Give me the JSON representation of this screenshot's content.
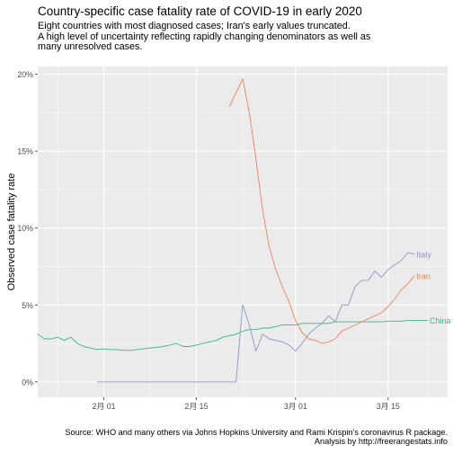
{
  "title": "Country-specific case fatality rate of COVID-19 in early 2020",
  "subtitle_lines": [
    "Eight countries with most diagnosed cases; Iran's early values truncated.",
    "A high level of uncertainty reflecting rapidly changing denominators as well as",
    "many unresolved cases."
  ],
  "caption_lines": [
    "Source: WHO and many others via Johns Hopkins University and Rami Krispin's coronavirus R package.",
    "Analysis by http://freerangestats.info"
  ],
  "colors": {
    "panel_bg": "#EBEBEB",
    "grid": "#FFFFFF",
    "China": "#3EB489",
    "Italy": "#8C97C6",
    "Iran": "#F0825F"
  },
  "chart_data": {
    "type": "line",
    "xlabel": "",
    "ylabel": "Observed case fatality rate",
    "x_domain": [
      "2020-01-22",
      "2020-03-24"
    ],
    "ylim": [
      -0.01,
      0.205
    ],
    "x_ticks": [
      {
        "date": "2020-02-01",
        "label": "2月 01"
      },
      {
        "date": "2020-02-15",
        "label": "2月 15"
      },
      {
        "date": "2020-03-01",
        "label": "3月 01"
      },
      {
        "date": "2020-03-15",
        "label": "3月 15"
      }
    ],
    "y_ticks": [
      {
        "value": 0.0,
        "label": "0%"
      },
      {
        "value": 0.05,
        "label": "5%"
      },
      {
        "value": 0.1,
        "label": "10%"
      },
      {
        "value": 0.15,
        "label": "15%"
      },
      {
        "value": 0.2,
        "label": "20%"
      }
    ],
    "grid": true,
    "series": [
      {
        "name": "China",
        "points": [
          [
            "2020-01-22",
            0.031
          ],
          [
            "2020-01-23",
            0.028
          ],
          [
            "2020-01-24",
            0.028
          ],
          [
            "2020-01-25",
            0.029
          ],
          [
            "2020-01-26",
            0.027
          ],
          [
            "2020-01-27",
            0.029
          ],
          [
            "2020-01-28",
            0.025
          ],
          [
            "2020-01-29",
            0.023
          ],
          [
            "2020-01-30",
            0.022
          ],
          [
            "2020-01-31",
            0.021
          ],
          [
            "2020-02-01",
            0.0215
          ],
          [
            "2020-02-02",
            0.021
          ],
          [
            "2020-02-03",
            0.021
          ],
          [
            "2020-02-04",
            0.0205
          ],
          [
            "2020-02-05",
            0.0205
          ],
          [
            "2020-02-06",
            0.021
          ],
          [
            "2020-02-07",
            0.0215
          ],
          [
            "2020-02-08",
            0.022
          ],
          [
            "2020-02-09",
            0.0225
          ],
          [
            "2020-02-10",
            0.023
          ],
          [
            "2020-02-11",
            0.024
          ],
          [
            "2020-02-12",
            0.025
          ],
          [
            "2020-02-13",
            0.023
          ],
          [
            "2020-02-14",
            0.023
          ],
          [
            "2020-02-15",
            0.024
          ],
          [
            "2020-02-16",
            0.025
          ],
          [
            "2020-02-17",
            0.026
          ],
          [
            "2020-02-18",
            0.027
          ],
          [
            "2020-02-19",
            0.029
          ],
          [
            "2020-02-20",
            0.03
          ],
          [
            "2020-02-21",
            0.031
          ],
          [
            "2020-02-22",
            0.033
          ],
          [
            "2020-02-23",
            0.034
          ],
          [
            "2020-02-24",
            0.034
          ],
          [
            "2020-02-25",
            0.035
          ],
          [
            "2020-02-26",
            0.035
          ],
          [
            "2020-02-27",
            0.036
          ],
          [
            "2020-02-28",
            0.037
          ],
          [
            "2020-02-29",
            0.037
          ],
          [
            "2020-03-01",
            0.037
          ],
          [
            "2020-03-02",
            0.038
          ],
          [
            "2020-03-03",
            0.038
          ],
          [
            "2020-03-04",
            0.038
          ],
          [
            "2020-03-05",
            0.038
          ],
          [
            "2020-03-06",
            0.038
          ],
          [
            "2020-03-07",
            0.039
          ],
          [
            "2020-03-08",
            0.039
          ],
          [
            "2020-03-09",
            0.039
          ],
          [
            "2020-03-10",
            0.039
          ],
          [
            "2020-03-11",
            0.039
          ],
          [
            "2020-03-12",
            0.039
          ],
          [
            "2020-03-13",
            0.039
          ],
          [
            "2020-03-14",
            0.039
          ],
          [
            "2020-03-15",
            0.0395
          ],
          [
            "2020-03-16",
            0.0395
          ],
          [
            "2020-03-17",
            0.0395
          ],
          [
            "2020-03-18",
            0.04
          ],
          [
            "2020-03-19",
            0.04
          ],
          [
            "2020-03-20",
            0.04
          ],
          [
            "2020-03-21",
            0.04
          ]
        ]
      },
      {
        "name": "Italy",
        "points": [
          [
            "2020-01-31",
            0.0
          ],
          [
            "2020-02-01",
            0.0
          ],
          [
            "2020-02-05",
            0.0
          ],
          [
            "2020-02-10",
            0.0
          ],
          [
            "2020-02-15",
            0.0
          ],
          [
            "2020-02-20",
            0.0
          ],
          [
            "2020-02-21",
            0.0
          ],
          [
            "2020-02-22",
            0.05
          ],
          [
            "2020-02-23",
            0.037
          ],
          [
            "2020-02-24",
            0.02
          ],
          [
            "2020-02-25",
            0.031
          ],
          [
            "2020-02-26",
            0.028
          ],
          [
            "2020-02-27",
            0.027
          ],
          [
            "2020-02-28",
            0.026
          ],
          [
            "2020-02-29",
            0.024
          ],
          [
            "2020-03-01",
            0.02
          ],
          [
            "2020-03-02",
            0.025
          ],
          [
            "2020-03-03",
            0.031
          ],
          [
            "2020-03-04",
            0.035
          ],
          [
            "2020-03-05",
            0.038
          ],
          [
            "2020-03-06",
            0.043
          ],
          [
            "2020-03-07",
            0.039
          ],
          [
            "2020-03-08",
            0.05
          ],
          [
            "2020-03-09",
            0.05
          ],
          [
            "2020-03-10",
            0.062
          ],
          [
            "2020-03-11",
            0.066
          ],
          [
            "2020-03-12",
            0.066
          ],
          [
            "2020-03-13",
            0.072
          ],
          [
            "2020-03-14",
            0.068
          ],
          [
            "2020-03-15",
            0.073
          ],
          [
            "2020-03-16",
            0.076
          ],
          [
            "2020-03-17",
            0.079
          ],
          [
            "2020-03-18",
            0.084
          ],
          [
            "2020-03-19",
            0.083
          ]
        ]
      },
      {
        "name": "Iran",
        "points": [
          [
            "2020-02-20",
            0.179
          ],
          [
            "2020-02-21",
            0.188
          ],
          [
            "2020-02-22",
            0.197
          ],
          [
            "2020-02-23",
            0.175
          ],
          [
            "2020-02-24",
            0.145
          ],
          [
            "2020-02-25",
            0.112
          ],
          [
            "2020-02-26",
            0.088
          ],
          [
            "2020-02-27",
            0.073
          ],
          [
            "2020-02-28",
            0.062
          ],
          [
            "2020-02-29",
            0.052
          ],
          [
            "2020-03-01",
            0.04
          ],
          [
            "2020-03-02",
            0.032
          ],
          [
            "2020-03-03",
            0.028
          ],
          [
            "2020-03-04",
            0.027
          ],
          [
            "2020-03-05",
            0.025
          ],
          [
            "2020-03-06",
            0.026
          ],
          [
            "2020-03-07",
            0.028
          ],
          [
            "2020-03-08",
            0.033
          ],
          [
            "2020-03-09",
            0.035
          ],
          [
            "2020-03-10",
            0.037
          ],
          [
            "2020-03-11",
            0.039
          ],
          [
            "2020-03-12",
            0.041
          ],
          [
            "2020-03-13",
            0.043
          ],
          [
            "2020-03-14",
            0.045
          ],
          [
            "2020-03-15",
            0.049
          ],
          [
            "2020-03-16",
            0.054
          ],
          [
            "2020-03-17",
            0.06
          ],
          [
            "2020-03-18",
            0.064
          ],
          [
            "2020-03-19",
            0.069
          ]
        ]
      }
    ]
  }
}
